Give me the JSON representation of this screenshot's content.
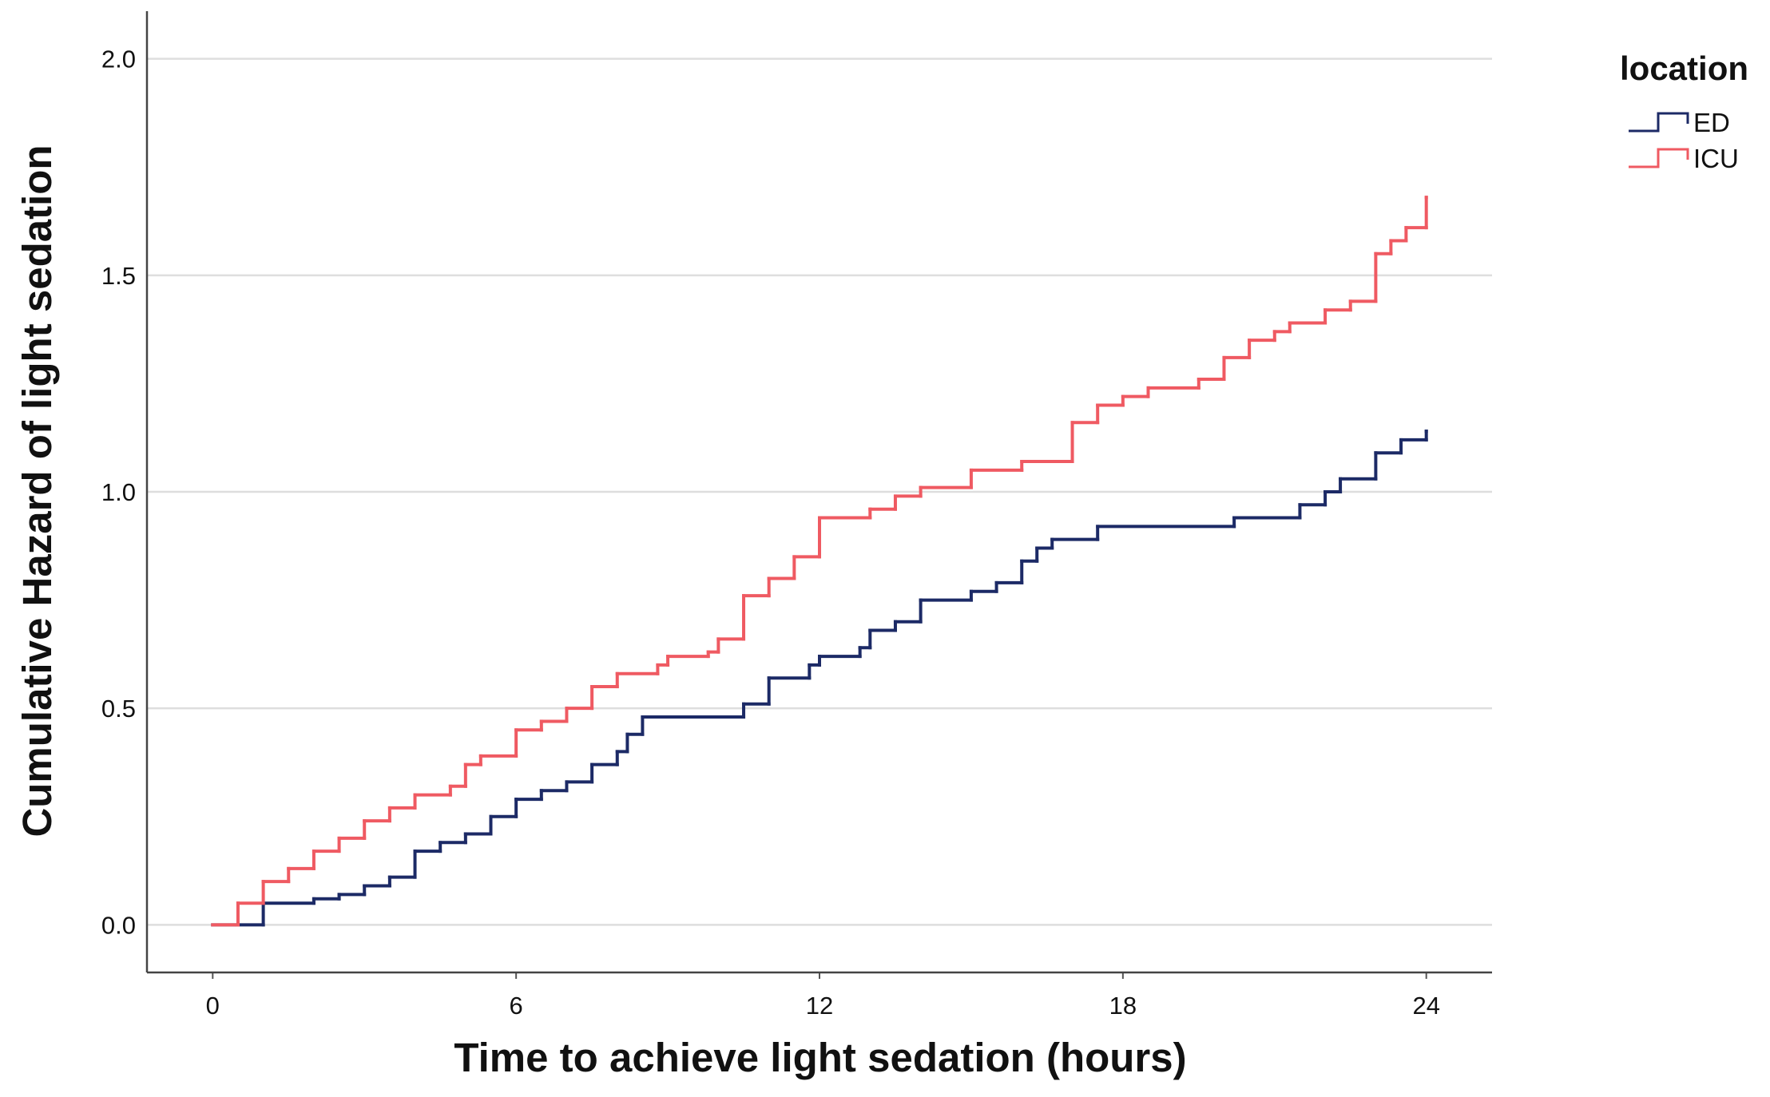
{
  "chart_data": {
    "type": "step",
    "x_label": "Time to achieve light sedation (hours)",
    "y_label": "Cumulative Hazard of light sedation",
    "legend_title": "location",
    "legend_position": "right",
    "grid": true,
    "xlim": [
      -1.3,
      25.3
    ],
    "ylim": [
      -0.11,
      2.11
    ],
    "xticks": [
      0,
      6,
      12,
      18,
      24
    ],
    "yticks": [
      {
        "value": 0,
        "label": "0.0"
      },
      0.5,
      {
        "value": 1,
        "label": "1.0"
      },
      1.5,
      {
        "value": 2,
        "label": "2.0"
      }
    ],
    "series": [
      {
        "name": "ED",
        "color": "#1c2a66",
        "x": [
          0,
          1.0,
          2.0,
          2.5,
          3.0,
          3.5,
          4.0,
          4.5,
          5.0,
          5.5,
          6.0,
          6.5,
          7.0,
          7.5,
          8.0,
          8.2,
          8.5,
          10.5,
          11.0,
          11.8,
          12.0,
          12.8,
          13.0,
          13.5,
          14.0,
          15.0,
          15.5,
          16.0,
          16.3,
          16.6,
          17.5,
          20.2,
          21.5,
          22.0,
          22.3,
          23.0,
          23.5,
          24.0
        ],
        "values": [
          0,
          0.05,
          0.06,
          0.07,
          0.09,
          0.11,
          0.17,
          0.19,
          0.21,
          0.25,
          0.29,
          0.31,
          0.33,
          0.37,
          0.4,
          0.44,
          0.48,
          0.51,
          0.57,
          0.6,
          0.62,
          0.64,
          0.68,
          0.7,
          0.75,
          0.77,
          0.79,
          0.84,
          0.87,
          0.89,
          0.92,
          0.94,
          0.97,
          1.0,
          1.03,
          1.09,
          1.12,
          1.14
        ]
      },
      {
        "name": "ICU",
        "color": "#ef5a62",
        "x": [
          0,
          0.5,
          1.0,
          1.5,
          2.0,
          2.5,
          3.0,
          3.5,
          4.0,
          4.7,
          5.0,
          5.3,
          6.0,
          6.5,
          7.0,
          7.5,
          8.0,
          8.8,
          9.0,
          9.8,
          10.0,
          10.5,
          11.0,
          11.5,
          12.0,
          13.0,
          13.5,
          14.0,
          15.0,
          16.0,
          17.0,
          17.5,
          18.0,
          18.5,
          19.5,
          20.0,
          20.5,
          21.0,
          21.3,
          22.0,
          22.5,
          23.0,
          23.3,
          23.6,
          24.0
        ],
        "values": [
          0,
          0.05,
          0.1,
          0.13,
          0.17,
          0.2,
          0.24,
          0.27,
          0.3,
          0.32,
          0.37,
          0.39,
          0.45,
          0.47,
          0.5,
          0.55,
          0.58,
          0.6,
          0.62,
          0.63,
          0.66,
          0.76,
          0.8,
          0.85,
          0.94,
          0.96,
          0.99,
          1.01,
          1.05,
          1.07,
          1.16,
          1.2,
          1.22,
          1.24,
          1.26,
          1.31,
          1.35,
          1.37,
          1.39,
          1.42,
          1.44,
          1.55,
          1.58,
          1.61,
          1.68
        ]
      }
    ]
  }
}
